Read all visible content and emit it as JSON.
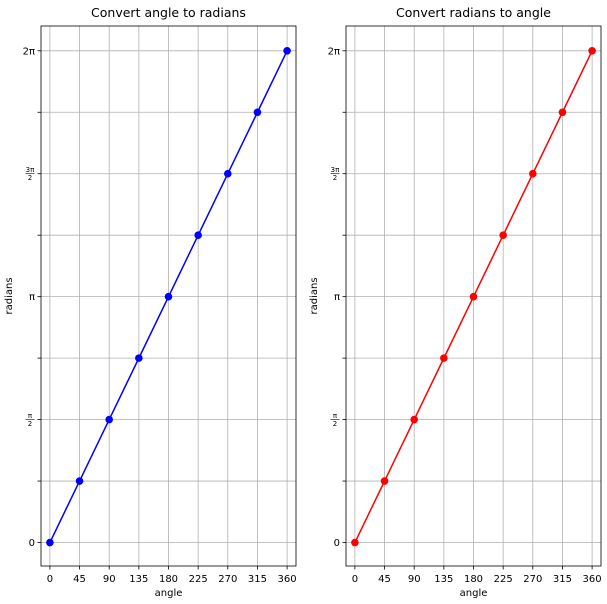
{
  "chart_data": [
    {
      "type": "line",
      "title": "Convert angle to radians",
      "xlabel": "angle",
      "ylabel": "radians",
      "x": [
        0,
        45,
        90,
        135,
        180,
        225,
        270,
        315,
        360
      ],
      "series": [
        {
          "values": [
            0,
            0.7854,
            1.5708,
            2.3562,
            3.1416,
            3.927,
            4.7124,
            5.4978,
            6.2832
          ],
          "color": "#0000ff",
          "marker": "circle"
        }
      ],
      "xlim": [
        -13.5,
        373.5
      ],
      "ylim": [
        -0.3,
        6.6
      ],
      "xticks": [
        "0",
        "45",
        "90",
        "135",
        "180",
        "225",
        "270",
        "315",
        "360"
      ],
      "yticks": [
        {
          "value": 0,
          "label": "0",
          "kind": "text"
        },
        {
          "value": 0.7854,
          "label": "",
          "kind": "minor"
        },
        {
          "value": 1.5708,
          "label": "π/2",
          "kind": "frac",
          "num": "π",
          "den": "2"
        },
        {
          "value": 2.3562,
          "label": "",
          "kind": "minor"
        },
        {
          "value": 3.1416,
          "label": "π",
          "kind": "text"
        },
        {
          "value": 3.927,
          "label": "",
          "kind": "minor"
        },
        {
          "value": 4.7124,
          "label": "3π/2",
          "kind": "frac",
          "num": "3π",
          "den": "2"
        },
        {
          "value": 5.4978,
          "label": "",
          "kind": "minor"
        },
        {
          "value": 6.2832,
          "label": "2π",
          "kind": "text"
        }
      ],
      "grid": true
    },
    {
      "type": "line",
      "title": "Convert radians to angle",
      "xlabel": "angle",
      "ylabel": "radians",
      "x": [
        0,
        45,
        90,
        135,
        180,
        225,
        270,
        315,
        360
      ],
      "series": [
        {
          "values": [
            0,
            0.7854,
            1.5708,
            2.3562,
            3.1416,
            3.927,
            4.7124,
            5.4978,
            6.2832
          ],
          "color": "#ff0000",
          "marker": "circle"
        }
      ],
      "xlim": [
        -13.5,
        373.5
      ],
      "ylim": [
        -0.3,
        6.6
      ],
      "xticks": [
        "0",
        "45",
        "90",
        "135",
        "180",
        "225",
        "270",
        "315",
        "360"
      ],
      "yticks": [
        {
          "value": 0,
          "label": "0",
          "kind": "text"
        },
        {
          "value": 0.7854,
          "label": "",
          "kind": "minor"
        },
        {
          "value": 1.5708,
          "label": "π/2",
          "kind": "frac",
          "num": "π",
          "den": "2"
        },
        {
          "value": 2.3562,
          "label": "",
          "kind": "minor"
        },
        {
          "value": 3.1416,
          "label": "π",
          "kind": "text"
        },
        {
          "value": 3.927,
          "label": "",
          "kind": "minor"
        },
        {
          "value": 4.7124,
          "label": "3π/2",
          "kind": "frac",
          "num": "3π",
          "den": "2"
        },
        {
          "value": 5.4978,
          "label": "",
          "kind": "minor"
        },
        {
          "value": 6.2832,
          "label": "2π",
          "kind": "text"
        }
      ],
      "grid": true
    }
  ]
}
